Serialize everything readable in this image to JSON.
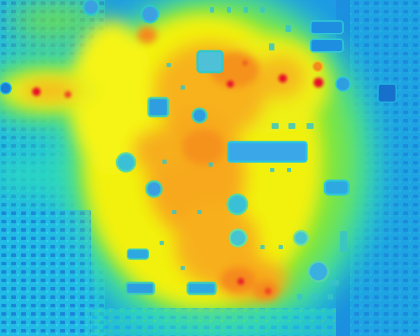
{
  "image": {
    "kind": "thermal-camera-image",
    "subject": "circuit-board",
    "palette": {
      "coldest": "#1c8fe6",
      "cool": "#1fc7e8",
      "mild": "#2ee0a0",
      "warm-green": "#8ae83a",
      "yellow": "#f4f20c",
      "orange": "#f9b21a",
      "deep-orange": "#f58a1c",
      "hotspot": "#e8102a"
    }
  }
}
